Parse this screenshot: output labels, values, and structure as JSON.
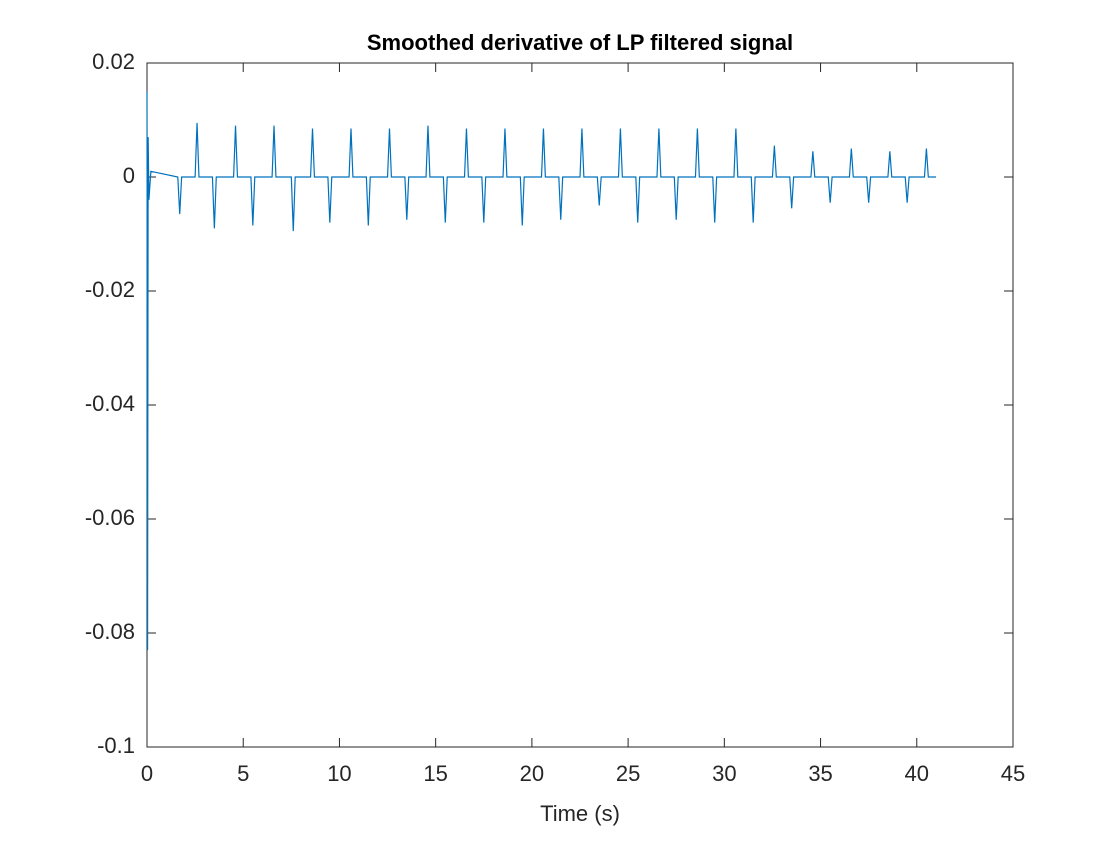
{
  "chart_data": {
    "type": "line",
    "title": "Smoothed derivative of LP filtered signal",
    "xlabel": "Time (s)",
    "x": [
      0,
      0.03,
      0.06,
      0.1,
      0.2,
      1.6,
      1.7,
      1.8,
      2.5,
      2.6,
      2.7,
      3.4,
      3.5,
      3.6,
      4.5,
      4.6,
      4.7,
      5.4,
      5.5,
      5.6,
      6.5,
      6.6,
      6.7,
      7.5,
      7.6,
      7.7,
      8.5,
      8.6,
      8.7,
      9.4,
      9.5,
      9.6,
      10.5,
      10.6,
      10.7,
      11.4,
      11.5,
      11.6,
      12.5,
      12.6,
      12.7,
      13.4,
      13.5,
      13.6,
      14.5,
      14.6,
      14.7,
      15.4,
      15.5,
      15.6,
      16.5,
      16.6,
      16.7,
      17.4,
      17.5,
      17.6,
      18.5,
      18.6,
      18.7,
      19.4,
      19.5,
      19.6,
      20.5,
      20.6,
      20.7,
      21.4,
      21.5,
      21.6,
      22.5,
      22.6,
      22.7,
      23.4,
      23.5,
      23.6,
      24.5,
      24.6,
      24.7,
      25.4,
      25.5,
      25.6,
      26.5,
      26.6,
      26.7,
      27.4,
      27.5,
      27.6,
      28.5,
      28.6,
      28.7,
      29.4,
      29.5,
      29.6,
      30.5,
      30.6,
      30.7,
      31.4,
      31.5,
      31.6,
      32.5,
      32.6,
      32.7,
      33.4,
      33.5,
      33.6,
      34.5,
      34.6,
      34.7,
      35.4,
      35.5,
      35.6,
      36.5,
      36.6,
      36.7,
      37.4,
      37.5,
      37.6,
      38.5,
      38.6,
      38.7,
      39.4,
      39.5,
      39.6,
      40.4,
      40.5,
      40.6,
      41
    ],
    "series": [
      {
        "color": "#0072BD",
        "values": [
          0.015,
          -0.083,
          0.007,
          -0.004,
          0.001,
          0,
          -0.0065,
          0,
          0,
          0.0095,
          0,
          0,
          -0.009,
          0,
          0,
          0.009,
          0,
          0,
          -0.0085,
          0,
          0,
          0.009,
          0,
          0,
          -0.0095,
          0,
          0,
          0.0085,
          0,
          0,
          -0.008,
          0,
          0,
          0.0085,
          0,
          0,
          -0.0085,
          0,
          0,
          0.0085,
          0,
          0,
          -0.0075,
          0,
          0,
          0.009,
          0,
          0,
          -0.008,
          0,
          0,
          0.0085,
          0,
          0,
          -0.008,
          0,
          0,
          0.0085,
          0,
          0,
          -0.0085,
          0,
          0,
          0.0085,
          0,
          0,
          -0.0075,
          0,
          0,
          0.0085,
          0,
          0,
          -0.005,
          0,
          0,
          0.0085,
          0,
          0,
          -0.008,
          0,
          0,
          0.0085,
          0,
          0,
          -0.0075,
          0,
          0,
          0.0085,
          0,
          0,
          -0.008,
          0,
          0,
          0.0085,
          0,
          0,
          -0.008,
          0,
          0,
          0.0055,
          0,
          0,
          -0.0055,
          0,
          0,
          0.0045,
          0,
          0,
          -0.0045,
          0,
          0,
          0.005,
          0,
          0,
          -0.0045,
          0,
          0,
          0.0045,
          0,
          0,
          -0.0045,
          0,
          0,
          0.005,
          0,
          0
        ]
      }
    ],
    "xlim": [
      0,
      45
    ],
    "xticks": [
      0,
      5,
      10,
      15,
      20,
      25,
      30,
      35,
      40,
      45
    ],
    "ylim": [
      -0.1,
      0.02
    ],
    "yticks": [
      -0.1,
      -0.08,
      -0.06,
      -0.04,
      -0.02,
      0,
      0.02
    ]
  }
}
